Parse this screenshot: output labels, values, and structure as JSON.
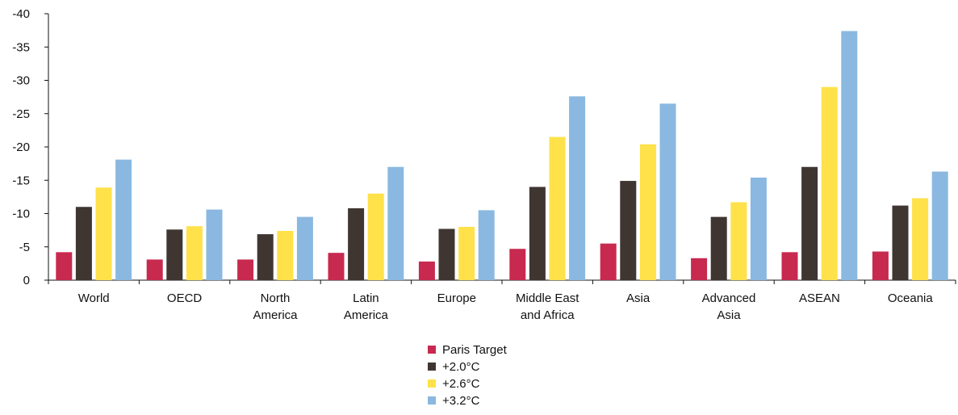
{
  "chart_data": {
    "type": "bar",
    "title": "",
    "xlabel": "",
    "ylabel": "",
    "ylim": [
      0,
      -40
    ],
    "yticks": [
      0,
      -5,
      -10,
      -15,
      -20,
      -25,
      -30,
      -35,
      -40
    ],
    "y_tick_labels": [
      "0",
      "-5",
      "-10",
      "-15",
      "-20",
      "-25",
      "-30",
      "-35",
      "-40"
    ],
    "categories": [
      [
        "World"
      ],
      [
        "OECD"
      ],
      [
        "North",
        "America"
      ],
      [
        "Latin",
        "America"
      ],
      [
        "Europe"
      ],
      [
        "Middle East",
        "and Africa"
      ],
      [
        "Asia"
      ],
      [
        "Advanced",
        "Asia"
      ],
      [
        "ASEAN"
      ],
      [
        "Oceania"
      ]
    ],
    "series": [
      {
        "name": "Paris Target",
        "color": "#c8294f",
        "values": [
          -4.2,
          -3.1,
          -3.1,
          -4.1,
          -2.8,
          -4.7,
          -5.5,
          -3.3,
          -4.2,
          -4.3
        ]
      },
      {
        "name": "+2.0°C",
        "color": "#3f3632",
        "values": [
          -11.0,
          -7.6,
          -6.9,
          -10.8,
          -7.7,
          -14.0,
          -14.9,
          -9.5,
          -17.0,
          -11.2
        ]
      },
      {
        "name": "+2.6°C",
        "color": "#ffe14a",
        "values": [
          -13.9,
          -8.1,
          -7.4,
          -13.0,
          -8.0,
          -21.5,
          -20.4,
          -11.7,
          -29.0,
          -12.3
        ]
      },
      {
        "name": "+3.2°C",
        "color": "#8ab8e0",
        "values": [
          -18.1,
          -10.6,
          -9.5,
          -17.0,
          -10.5,
          -27.6,
          -26.5,
          -15.4,
          -37.4,
          -16.3
        ]
      }
    ],
    "grid": false,
    "legend_position": "bottom-center"
  }
}
